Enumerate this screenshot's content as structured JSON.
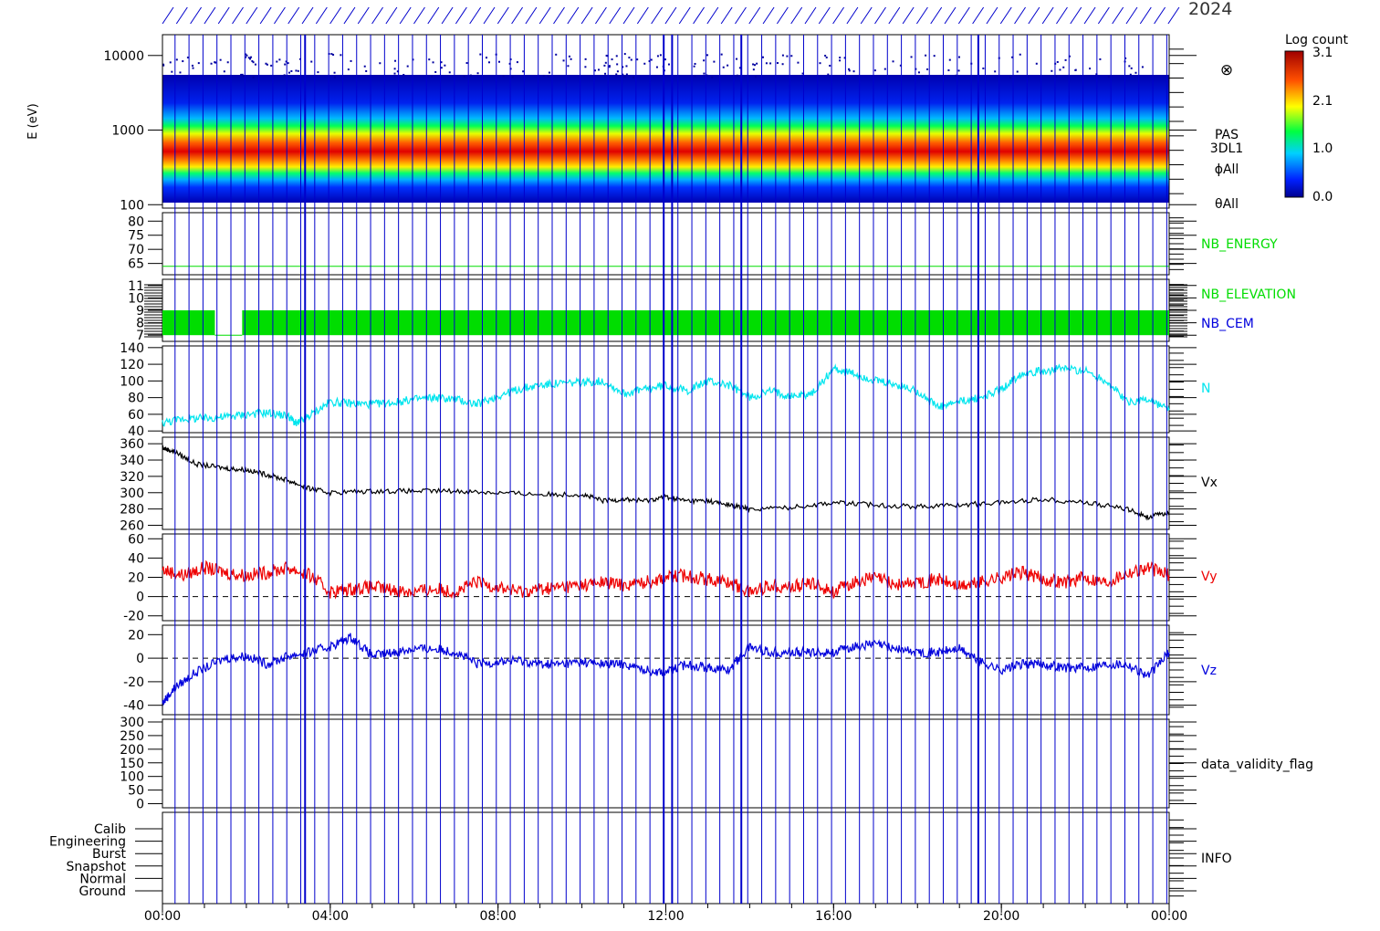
{
  "figure": {
    "header_date": "2024",
    "ylabel_energy": "E (eV)"
  },
  "time_axis": {
    "ticks": [
      "00:00",
      "04:00",
      "08:00",
      "12:00",
      "16:00",
      "20:00",
      "00:00"
    ],
    "range_hours": [
      0,
      24
    ]
  },
  "colors": {
    "axis": "#000000",
    "marker_lines": "#0000cc",
    "green": "#00dd00",
    "cyan": "#00e5ee",
    "black": "#000000",
    "red": "#ee0000",
    "blue": "#0000dd",
    "dash": "#000000"
  },
  "colorbar": {
    "title": "Log count",
    "ticks": [
      "3.1",
      "2.1",
      "1.0",
      "0.0"
    ],
    "range": [
      0.0,
      3.1
    ]
  },
  "panel_labels": {
    "spectrogram": [
      "PAS",
      "3DL1",
      "ϕAll",
      "θAll"
    ],
    "nb_energy": "NB_ENERGY",
    "nb_elevation": "NB_ELEVATION",
    "nb_cem": "NB_CEM",
    "density": "N",
    "vx": "Vx",
    "vy": "Vy",
    "vz": "Vz",
    "validity": "data_validity_flag",
    "info": "INFO"
  },
  "chart_data": [
    {
      "type": "heatmap",
      "name": "PAS 3DL1 energy spectrogram",
      "ylabel": "E (eV)",
      "yscale": "log",
      "ylim": [
        100,
        20000
      ],
      "ytick_labels": [
        "10000",
        "1000",
        "100"
      ],
      "ytick_values": [
        10000,
        1000,
        100
      ],
      "x_range_hours": [
        0,
        24
      ],
      "peak_energy_ev": [
        [
          0,
          700
        ],
        [
          3,
          650
        ],
        [
          6,
          600
        ],
        [
          10,
          520
        ],
        [
          12,
          540
        ],
        [
          14,
          500
        ],
        [
          16,
          560
        ],
        [
          18,
          520
        ],
        [
          20,
          550
        ],
        [
          22,
          500
        ],
        [
          24,
          480
        ]
      ],
      "colorbar": {
        "label": "Log count",
        "range": [
          0.0,
          3.1
        ]
      }
    },
    {
      "type": "line",
      "name": "NB_ENERGY",
      "ytick_labels": [
        "80",
        "75",
        "70",
        "65"
      ],
      "ylim": [
        61,
        83
      ],
      "series": [
        {
          "x": [
            0,
            24
          ],
          "y": [
            64,
            64
          ]
        }
      ]
    },
    {
      "type": "bar",
      "name": "NB_ELEVATION / NB_CEM",
      "ytick_labels": [
        "11",
        "10",
        "9",
        "8",
        "7"
      ],
      "ylim": [
        6.5,
        11.5
      ],
      "elevation_values": [
        7,
        9
      ],
      "gaps_hours": [
        [
          1.25,
          1.9
        ]
      ]
    },
    {
      "type": "line",
      "name": "N",
      "ytick_labels": [
        "140",
        "120",
        "100",
        "80",
        "60",
        "40"
      ],
      "ylim": [
        38,
        142
      ],
      "series": [
        {
          "x": [
            0,
            0.5,
            1,
            1.5,
            2,
            2.5,
            3,
            3.2,
            3.5,
            4,
            4.5,
            5,
            5.5,
            6,
            6.5,
            7,
            7.5,
            8,
            8.5,
            9,
            9.5,
            10,
            10.5,
            11,
            11.5,
            12,
            12.5,
            13,
            13.5,
            14,
            14.5,
            15,
            15.5,
            16,
            16.5,
            17,
            17.5,
            18,
            18.5,
            19,
            19.5,
            20,
            20.5,
            21,
            21.5,
            22,
            22.5,
            23,
            23.5,
            24
          ],
          "y": [
            50,
            55,
            55,
            57,
            60,
            62,
            58,
            48,
            58,
            75,
            73,
            72,
            74,
            78,
            80,
            78,
            72,
            82,
            90,
            95,
            97,
            98,
            100,
            85,
            90,
            95,
            88,
            100,
            95,
            80,
            88,
            82,
            85,
            115,
            108,
            100,
            95,
            88,
            68,
            75,
            80,
            90,
            110,
            112,
            115,
            112,
            100,
            75,
            78,
            65
          ]
        }
      ]
    },
    {
      "type": "line",
      "name": "Vx",
      "ytick_labels": [
        "360",
        "340",
        "320",
        "300",
        "280",
        "260"
      ],
      "ylim": [
        255,
        368
      ],
      "series": [
        {
          "x": [
            0,
            0.3,
            0.8,
            1.5,
            2,
            2.5,
            3,
            3.5,
            4,
            5,
            6,
            7,
            8,
            9,
            10,
            10.5,
            11,
            11.5,
            12,
            12.5,
            13,
            13.5,
            14,
            15,
            16,
            17,
            18,
            19,
            20,
            21,
            22,
            23,
            23.5,
            24
          ],
          "y": [
            355,
            350,
            335,
            330,
            328,
            322,
            315,
            305,
            300,
            302,
            302,
            302,
            300,
            298,
            298,
            290,
            292,
            290,
            295,
            290,
            290,
            285,
            280,
            282,
            288,
            285,
            283,
            285,
            288,
            292,
            288,
            280,
            270,
            276
          ]
        }
      ]
    },
    {
      "type": "line",
      "name": "Vy",
      "ytick_labels": [
        "60",
        "40",
        "20",
        "0",
        "-20"
      ],
      "ylim": [
        -25,
        65
      ],
      "series": [
        {
          "x": [
            0,
            0.5,
            1,
            1.5,
            2,
            2.5,
            3,
            3.5,
            4,
            4.5,
            5,
            5.5,
            6,
            6.5,
            7,
            7.5,
            8,
            8.5,
            9,
            9.5,
            10,
            10.5,
            11,
            11.5,
            12,
            12.5,
            13,
            13.5,
            14,
            14.5,
            15,
            15.5,
            16,
            16.5,
            17,
            17.5,
            18,
            18.5,
            19,
            19.5,
            20,
            20.5,
            21,
            21.5,
            22,
            22.5,
            23,
            23.5,
            24
          ],
          "y": [
            28,
            22,
            30,
            25,
            22,
            25,
            30,
            22,
            5,
            8,
            10,
            7,
            5,
            8,
            5,
            15,
            10,
            5,
            8,
            10,
            12,
            15,
            12,
            15,
            20,
            22,
            18,
            15,
            5,
            12,
            10,
            14,
            5,
            15,
            20,
            12,
            15,
            18,
            10,
            15,
            20,
            25,
            18,
            15,
            20,
            15,
            25,
            30,
            22
          ]
        }
      ]
    },
    {
      "type": "line",
      "name": "Vz",
      "ytick_labels": [
        "20",
        "0",
        "-20",
        "-40"
      ],
      "ylim": [
        -48,
        28
      ],
      "series": [
        {
          "x": [
            0,
            0.3,
            0.8,
            1.5,
            2,
            2.5,
            3,
            3.5,
            4,
            4.5,
            5,
            5.5,
            6,
            6.5,
            7,
            7.5,
            8,
            8.5,
            9,
            9.5,
            10,
            10.5,
            11,
            11.5,
            12,
            12.5,
            13,
            13.5,
            14,
            14.5,
            15,
            15.5,
            16,
            16.5,
            17,
            17.5,
            18,
            18.5,
            19,
            19.5,
            20,
            20.5,
            21,
            21.5,
            22,
            22.5,
            23,
            23.5,
            24
          ],
          "y": [
            -38,
            -25,
            -12,
            0,
            2,
            -5,
            2,
            5,
            10,
            18,
            2,
            5,
            8,
            8,
            5,
            -5,
            -3,
            -2,
            -5,
            -5,
            -3,
            -5,
            -5,
            -10,
            -12,
            -5,
            -8,
            -10,
            10,
            5,
            5,
            5,
            5,
            10,
            12,
            8,
            5,
            5,
            8,
            -3,
            -10,
            -5,
            -5,
            -8,
            -8,
            -5,
            -5,
            -15,
            5
          ]
        }
      ]
    },
    {
      "type": "line",
      "name": "data_validity_flag",
      "ytick_labels": [
        "300",
        "250",
        "200",
        "150",
        "100",
        "50",
        "0"
      ],
      "ylim": [
        -15,
        310
      ]
    },
    {
      "type": "line",
      "name": "INFO",
      "ytick_labels": [
        "Calib",
        "Engineering",
        "Burst",
        "Snapshot",
        "Normal",
        "Ground"
      ]
    }
  ]
}
